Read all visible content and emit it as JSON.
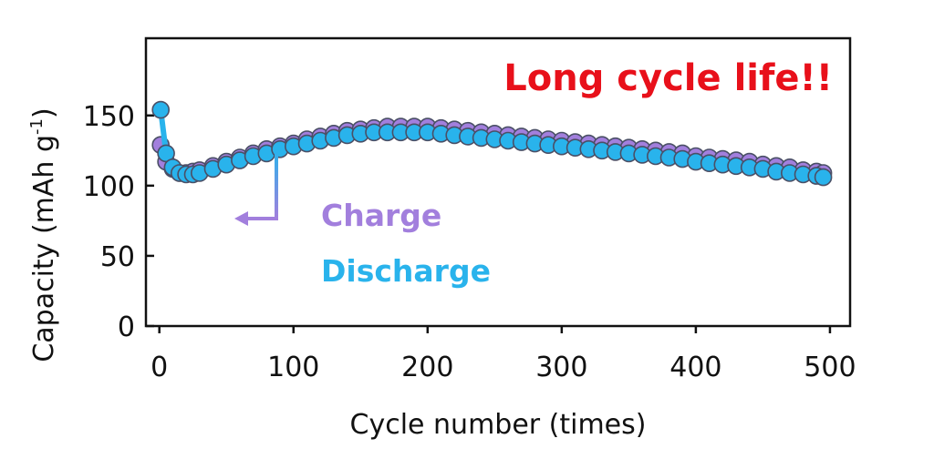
{
  "chart_data": {
    "type": "scatter",
    "title": "",
    "annotation": "Long cycle life!!",
    "xlabel": "Cycle number (times)",
    "ylabel_main": "Capacity (mAh g",
    "ylabel_sup": "-1",
    "ylabel_close": ")",
    "xlim": [
      -10,
      515
    ],
    "ylim": [
      0,
      205
    ],
    "xticks": [
      0,
      100,
      200,
      300,
      400,
      500
    ],
    "yticks": [
      0,
      50,
      100,
      150
    ],
    "xtick_labels": [
      "0",
      "100",
      "200",
      "300",
      "400",
      "500"
    ],
    "ytick_labels": [
      "0",
      "50",
      "100",
      "150"
    ],
    "grid": false,
    "legend_position": "center",
    "series": [
      {
        "name": "Charge",
        "color": "#a27fdd",
        "x": [
          1,
          5,
          10,
          15,
          20,
          25,
          30,
          40,
          50,
          60,
          70,
          80,
          90,
          100,
          110,
          120,
          130,
          140,
          150,
          160,
          170,
          180,
          190,
          200,
          210,
          220,
          230,
          240,
          250,
          260,
          270,
          280,
          290,
          300,
          310,
          320,
          330,
          340,
          350,
          360,
          370,
          380,
          390,
          400,
          410,
          420,
          430,
          440,
          450,
          460,
          470,
          480,
          490,
          495
        ],
        "y": [
          129,
          117,
          112,
          109,
          109,
          110,
          111,
          114,
          117,
          120,
          123,
          126,
          128,
          130,
          133,
          135,
          137,
          139,
          140,
          141,
          142,
          142,
          142,
          142,
          141,
          140,
          139,
          138,
          137,
          136,
          135,
          134,
          133,
          132,
          131,
          130,
          129,
          128,
          127,
          126,
          125,
          124,
          123,
          121,
          120,
          119,
          118,
          117,
          115,
          114,
          113,
          111,
          110,
          109
        ]
      },
      {
        "name": "Discharge",
        "color": "#29b3ec",
        "x": [
          1,
          5,
          10,
          15,
          20,
          25,
          30,
          40,
          50,
          60,
          70,
          80,
          90,
          100,
          110,
          120,
          130,
          140,
          150,
          160,
          170,
          180,
          190,
          200,
          210,
          220,
          230,
          240,
          250,
          260,
          270,
          280,
          290,
          300,
          310,
          320,
          330,
          340,
          350,
          360,
          370,
          380,
          390,
          400,
          410,
          420,
          430,
          440,
          450,
          460,
          470,
          480,
          490,
          495
        ],
        "y": [
          154,
          123,
          113,
          109,
          108,
          108,
          109,
          112,
          115,
          118,
          121,
          123,
          126,
          128,
          130,
          132,
          134,
          136,
          137,
          138,
          138,
          138,
          138,
          138,
          137,
          136,
          135,
          134,
          133,
          132,
          131,
          130,
          129,
          128,
          127,
          126,
          125,
          124,
          123,
          122,
          121,
          120,
          119,
          117,
          116,
          115,
          114,
          113,
          112,
          110,
          109,
          108,
          107,
          106
        ]
      }
    ]
  },
  "arrow_colors": {
    "top": "#29b3ec",
    "bottom": "#a27fdd"
  },
  "annotation_color": "#e8101a"
}
